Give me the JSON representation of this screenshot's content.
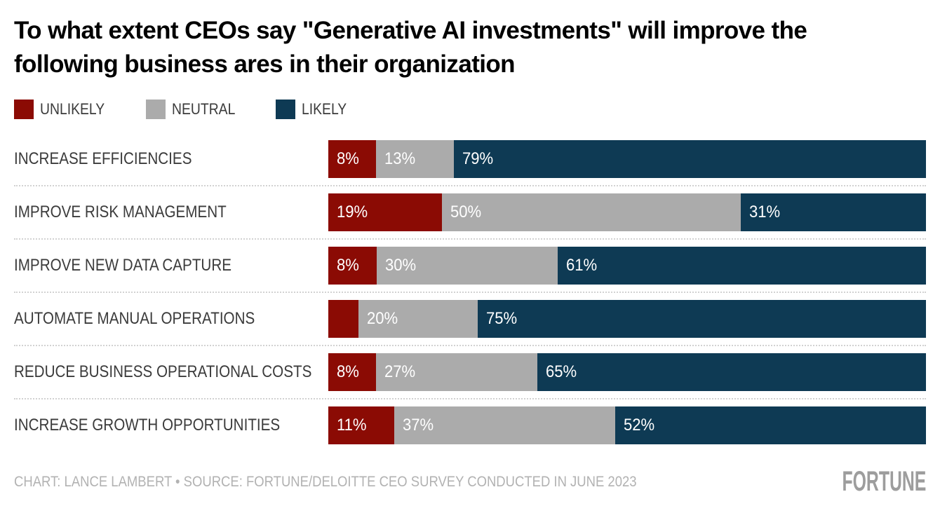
{
  "title": "To what extent CEOs say \"Generative AI investments\" will improve the following business ares in their organization",
  "legend": [
    {
      "label": "UNLIKELY",
      "color": "#8b0b04"
    },
    {
      "label": "NEUTRAL",
      "color": "#ababab"
    },
    {
      "label": "LIKELY",
      "color": "#0e3a54"
    }
  ],
  "colors": {
    "unlikely": "#8b0b04",
    "neutral": "#ababab",
    "likely": "#0e3a54"
  },
  "chart_data": {
    "type": "bar",
    "orientation": "horizontal",
    "stacked": true,
    "normalized": true,
    "unit": "%",
    "title": "To what extent CEOs say \"Generative AI investments\" will improve the following business ares in their organization",
    "legend_position": "top",
    "grid": false,
    "categories": [
      "INCREASE EFFICIENCIES",
      "IMPROVE RISK MANAGEMENT",
      "IMPROVE NEW DATA CAPTURE",
      "AUTOMATE MANUAL OPERATIONS",
      "REDUCE BUSINESS OPERATIONAL COSTS",
      "INCREASE GROWTH OPPORTUNITIES"
    ],
    "series": [
      {
        "name": "UNLIKELY",
        "color": "#8b0b04",
        "values": [
          8,
          19,
          8,
          5,
          8,
          11
        ],
        "labels": [
          "8%",
          "19%",
          "8%",
          "",
          "8%",
          "11%"
        ]
      },
      {
        "name": "NEUTRAL",
        "color": "#ababab",
        "values": [
          13,
          50,
          30,
          20,
          27,
          37
        ],
        "labels": [
          "13%",
          "50%",
          "30%",
          "20%",
          "27%",
          "37%"
        ]
      },
      {
        "name": "LIKELY",
        "color": "#0e3a54",
        "values": [
          79,
          31,
          61,
          75,
          65,
          52
        ],
        "labels": [
          "79%",
          "31%",
          "61%",
          "75%",
          "65%",
          "52%"
        ]
      }
    ]
  },
  "footer": {
    "credit": "CHART: LANCE LAMBERT • SOURCE: FORTUNE/DELOITTE CEO SURVEY CONDUCTED IN JUNE 2023",
    "brand": "FORTUNE"
  }
}
